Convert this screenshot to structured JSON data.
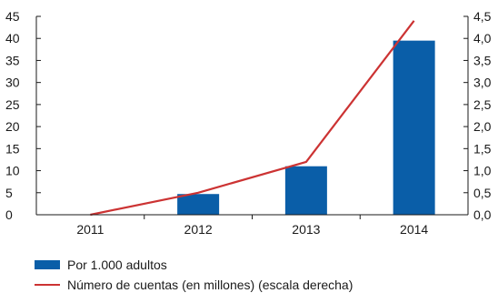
{
  "chart_data": {
    "type": "bar",
    "categories": [
      "2011",
      "2012",
      "2013",
      "2014"
    ],
    "series": [
      {
        "name": "Por 1.000 adultos",
        "kind": "bar",
        "axis": "left",
        "color": "#0a5ea8",
        "values": [
          0,
          4.7,
          11,
          39.5
        ]
      },
      {
        "name": "Número de cuentas (en millones) (escala derecha)",
        "kind": "line",
        "axis": "right",
        "color": "#cc3333",
        "values": [
          0,
          0.5,
          1.2,
          4.4
        ]
      }
    ],
    "y_left": {
      "ylim": [
        0,
        45
      ],
      "ticks": [
        "0",
        "5",
        "10",
        "15",
        "20",
        "25",
        "30",
        "35",
        "40",
        "45"
      ]
    },
    "y_right": {
      "ylim": [
        0,
        4.5
      ],
      "ticks": [
        "0,0",
        "0,5",
        "1,0",
        "1,5",
        "2,0",
        "2,5",
        "3,0",
        "3,5",
        "4,0",
        "4,5"
      ]
    },
    "grid": false,
    "legend_position": "bottom-left"
  }
}
